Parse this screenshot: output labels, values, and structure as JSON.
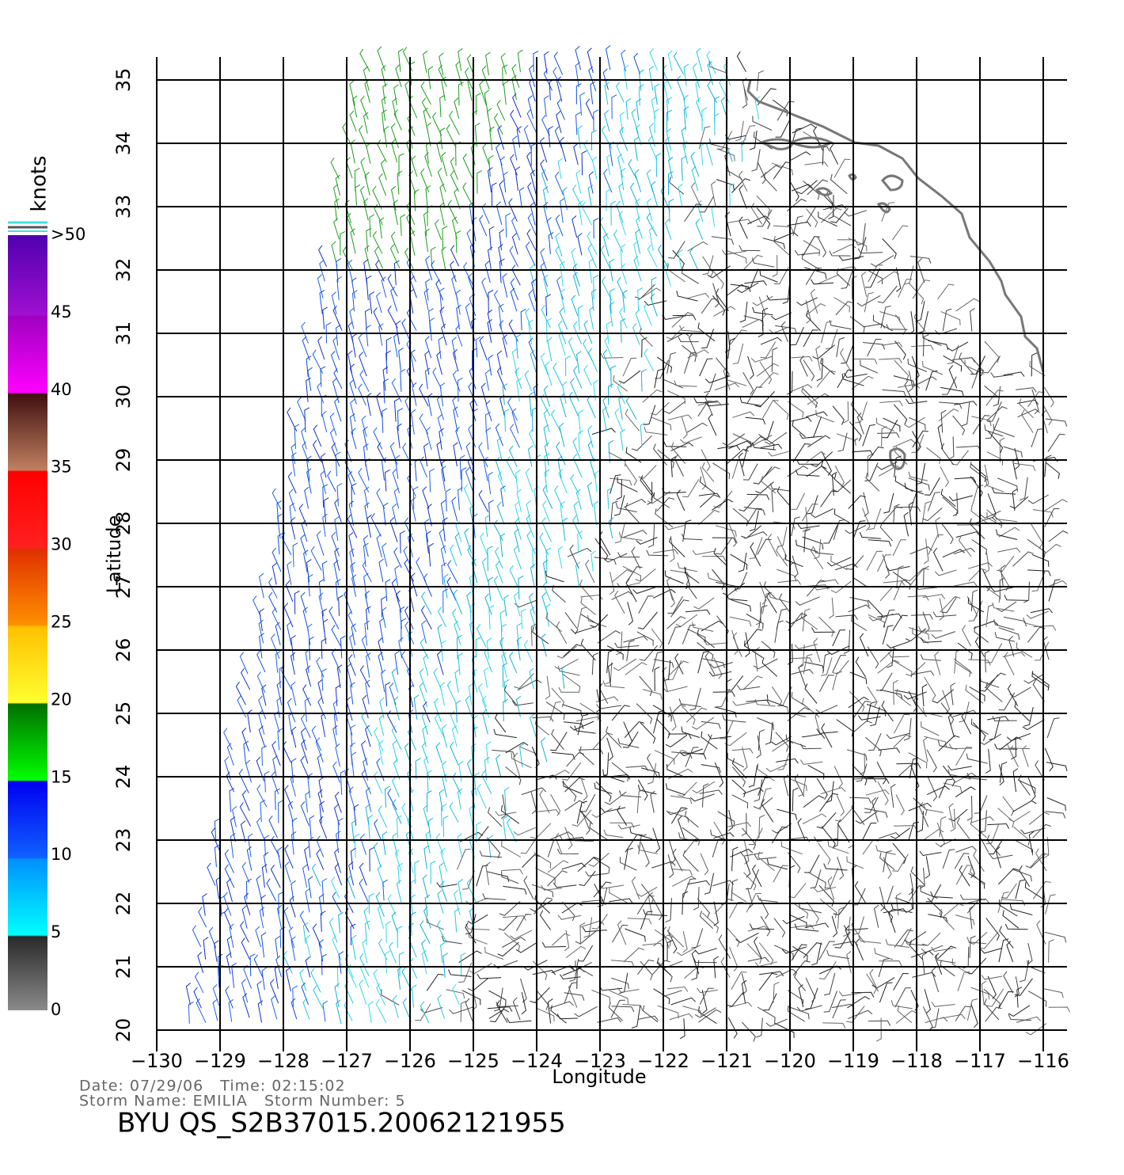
{
  "map": {
    "xlabel": "Longitude",
    "ylabel": "Latitude",
    "xlim": [
      -130,
      -116
    ],
    "ylim": [
      20,
      35
    ],
    "xticks": [
      {
        "value": -130,
        "label": "−130"
      },
      {
        "value": -129,
        "label": "−129"
      },
      {
        "value": -128,
        "label": "−128"
      },
      {
        "value": -127,
        "label": "−127"
      },
      {
        "value": -126,
        "label": "−126"
      },
      {
        "value": -125,
        "label": "−125"
      },
      {
        "value": -124,
        "label": "−124"
      },
      {
        "value": -123,
        "label": "−123"
      },
      {
        "value": -122,
        "label": "−122"
      },
      {
        "value": -121,
        "label": "−121"
      },
      {
        "value": -120,
        "label": "−120"
      },
      {
        "value": -119,
        "label": "−119"
      },
      {
        "value": -118,
        "label": "−118"
      },
      {
        "value": -117,
        "label": "−117"
      },
      {
        "value": -116,
        "label": "−116"
      }
    ],
    "yticks": [
      20,
      21,
      22,
      23,
      24,
      25,
      26,
      27,
      28,
      29,
      30,
      31,
      32,
      33,
      34,
      35
    ],
    "colorbar": {
      "label": "knots",
      "lim": [
        0,
        50
      ],
      "ticks": [
        0,
        5,
        10,
        15,
        20,
        25,
        30,
        35,
        40,
        45,
        {
          "value": 50,
          "label": ">50"
        }
      ]
    },
    "info": {
      "line1": "Date: 07/29/06   Time: 02:15:02",
      "line2": "Storm Name: EMILIA   Storm Number: 5",
      "title": "BYU  QS_S2B37015.20062121955"
    }
  }
}
